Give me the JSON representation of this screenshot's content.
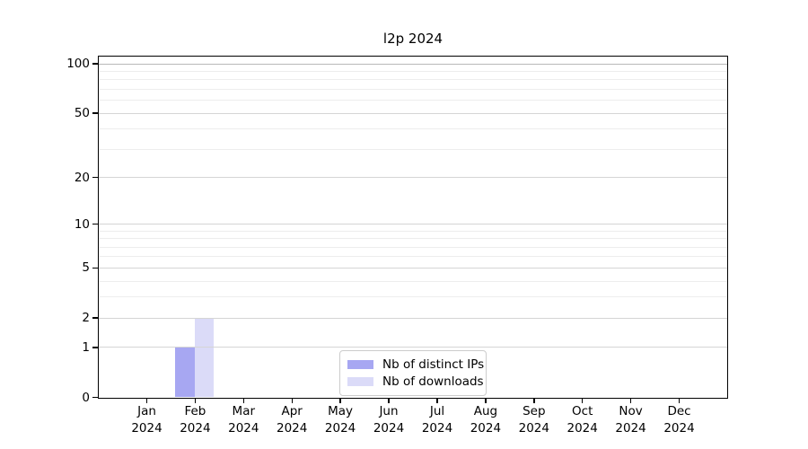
{
  "chart_data": {
    "type": "bar",
    "title": "l2p 2024",
    "xlabel": "",
    "ylabel": "",
    "x_tick_months": [
      "Jan",
      "Feb",
      "Mar",
      "Apr",
      "May",
      "Jun",
      "Jul",
      "Aug",
      "Sep",
      "Oct",
      "Nov",
      "Dec"
    ],
    "x_tick_year": "2024",
    "yscale": "log1p",
    "ylim": [
      0,
      110
    ],
    "yticks": [
      0,
      1,
      2,
      5,
      10,
      20,
      50,
      100
    ],
    "minor_yticks": [
      3,
      4,
      6,
      7,
      8,
      9,
      30,
      40,
      60,
      70,
      80,
      90
    ],
    "grid": {
      "major_color": "#d5d5d5",
      "minor_color": "#ededed",
      "top_major_color": "#b8b8b8"
    },
    "series": [
      {
        "name": "Nb of distinct IPs",
        "color": "#a7a7f2",
        "values": [
          0,
          1,
          0,
          0,
          0,
          0,
          0,
          0,
          0,
          0,
          0,
          0
        ]
      },
      {
        "name": "Nb of downloads",
        "color": "#dbdbf8",
        "values": [
          0,
          2,
          0,
          0,
          0,
          0,
          0,
          0,
          0,
          0,
          0,
          0
        ]
      }
    ],
    "legend": {
      "position": "lower center"
    }
  }
}
